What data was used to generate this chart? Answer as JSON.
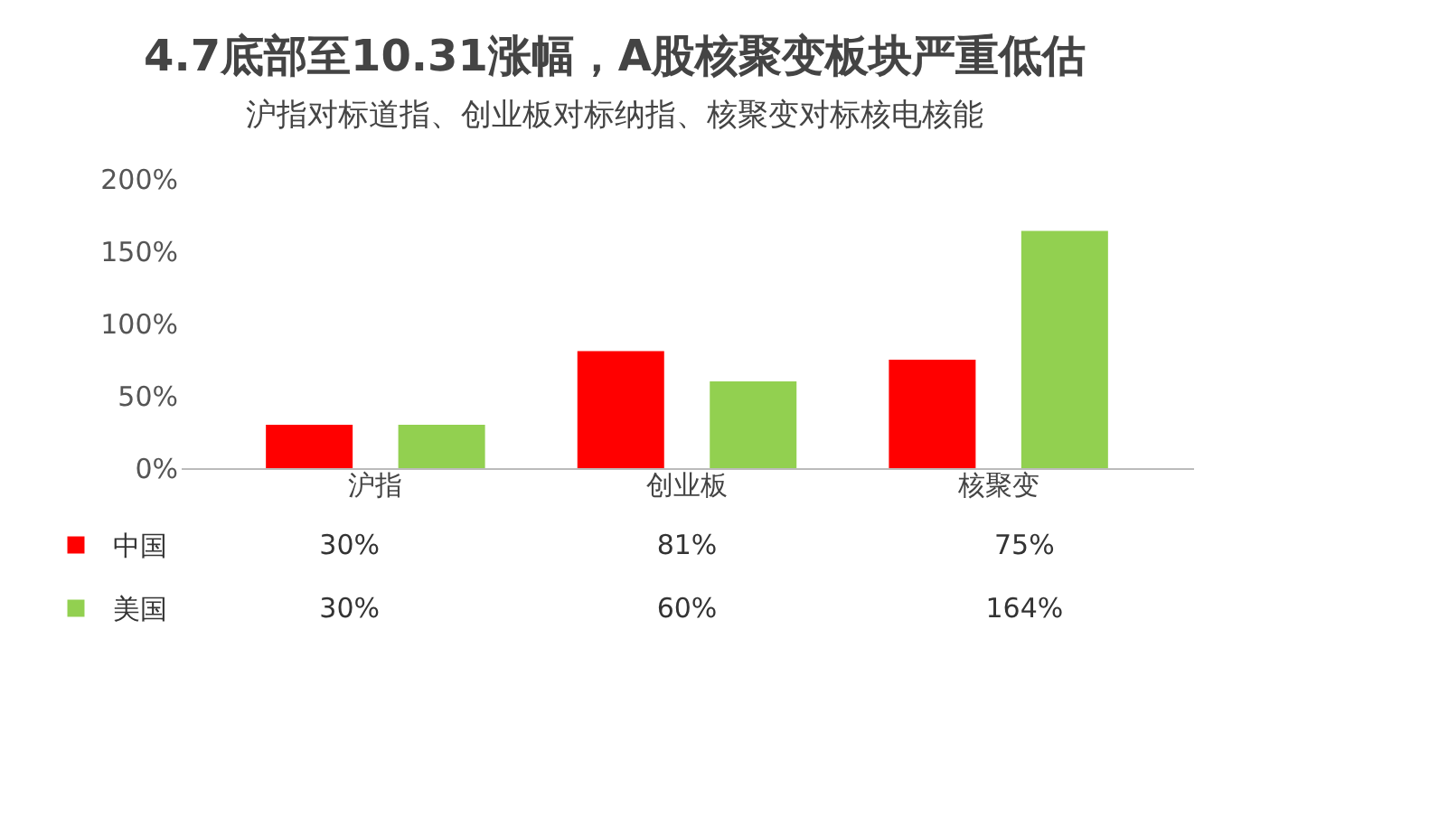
{
  "chart_data": {
    "type": "bar",
    "title": "4.7底部至10.31涨幅，A股核聚变板块严重低估",
    "subtitle": "沪指对标道指、创业板对标纳指、核聚变对标核电核能",
    "categories": [
      "沪指",
      "创业板",
      "核聚变"
    ],
    "series": [
      {
        "name": "中国",
        "color": "#ff0000",
        "values": [
          30,
          81,
          75
        ],
        "value_labels": [
          "30%",
          "81%",
          "75%"
        ]
      },
      {
        "name": "美国",
        "color": "#92d050",
        "values": [
          30,
          60,
          164
        ],
        "value_labels": [
          "30%",
          "60%",
          "164%"
        ]
      }
    ],
    "ylim": [
      0,
      200
    ],
    "yticks": [
      {
        "value": 0,
        "label": "0%"
      },
      {
        "value": 50,
        "label": "50%"
      },
      {
        "value": 100,
        "label": "100%"
      },
      {
        "value": 150,
        "label": "150%"
      },
      {
        "value": 200,
        "label": "200%"
      }
    ],
    "grid": false,
    "legend": "bottom",
    "data_labels": true
  }
}
